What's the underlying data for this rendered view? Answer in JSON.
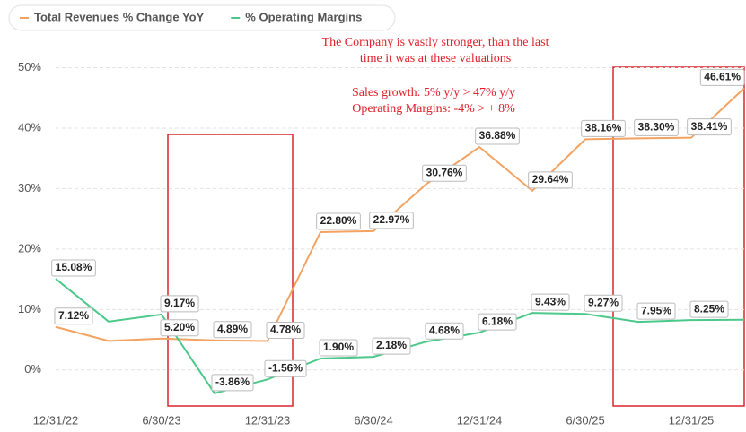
{
  "chart_data": {
    "type": "line",
    "categories": [
      "12/31/22",
      null,
      "6/30/23",
      null,
      "12/31/23",
      null,
      "6/30/24",
      null,
      "12/31/24",
      null,
      "6/30/25",
      null,
      "12/31/25",
      null
    ],
    "series": [
      {
        "name": "Total Revenues % Change YoY",
        "color": "#f4a261",
        "values": [
          7.12,
          4.8,
          5.2,
          4.89,
          4.78,
          22.8,
          22.97,
          30.76,
          36.88,
          29.64,
          38.16,
          38.3,
          38.41,
          46.61
        ],
        "value_labels": [
          "7.12%",
          null,
          "5.20%",
          "4.89%",
          "4.78%",
          "22.80%",
          "22.97%",
          "30.76%",
          "36.88%",
          "29.64%",
          "38.16%",
          "38.30%",
          "38.41%",
          "46.61%"
        ]
      },
      {
        "name": "% Operating Margins",
        "color": "#4cc98a",
        "values": [
          15.08,
          8.0,
          9.17,
          -3.86,
          -1.56,
          1.9,
          2.18,
          4.68,
          6.18,
          9.43,
          9.27,
          7.95,
          8.25,
          8.3
        ],
        "value_labels": [
          "15.08%",
          null,
          "9.17%",
          "-3.86%",
          "-1.56%",
          "1.90%",
          "2.18%",
          "4.68%",
          "6.18%",
          "9.43%",
          "9.27%",
          "7.95%",
          "8.25%",
          null
        ]
      }
    ],
    "annotations": [
      "The Company is vastly stronger, than the last",
      "time it was at these valuations",
      "Sales growth: 5% y/y > 47% y/y",
      "Operating Margins: -4% > + 8%"
    ],
    "ylim": [
      -7,
      52
    ],
    "yticks": [
      {
        "value": 0,
        "label": "0%"
      },
      {
        "value": 10,
        "label": "10%"
      },
      {
        "value": 20,
        "label": "20%"
      },
      {
        "value": 30,
        "label": "30%"
      },
      {
        "value": 40,
        "label": "40%"
      },
      {
        "value": 50,
        "label": "50%"
      }
    ],
    "grid": true
  }
}
